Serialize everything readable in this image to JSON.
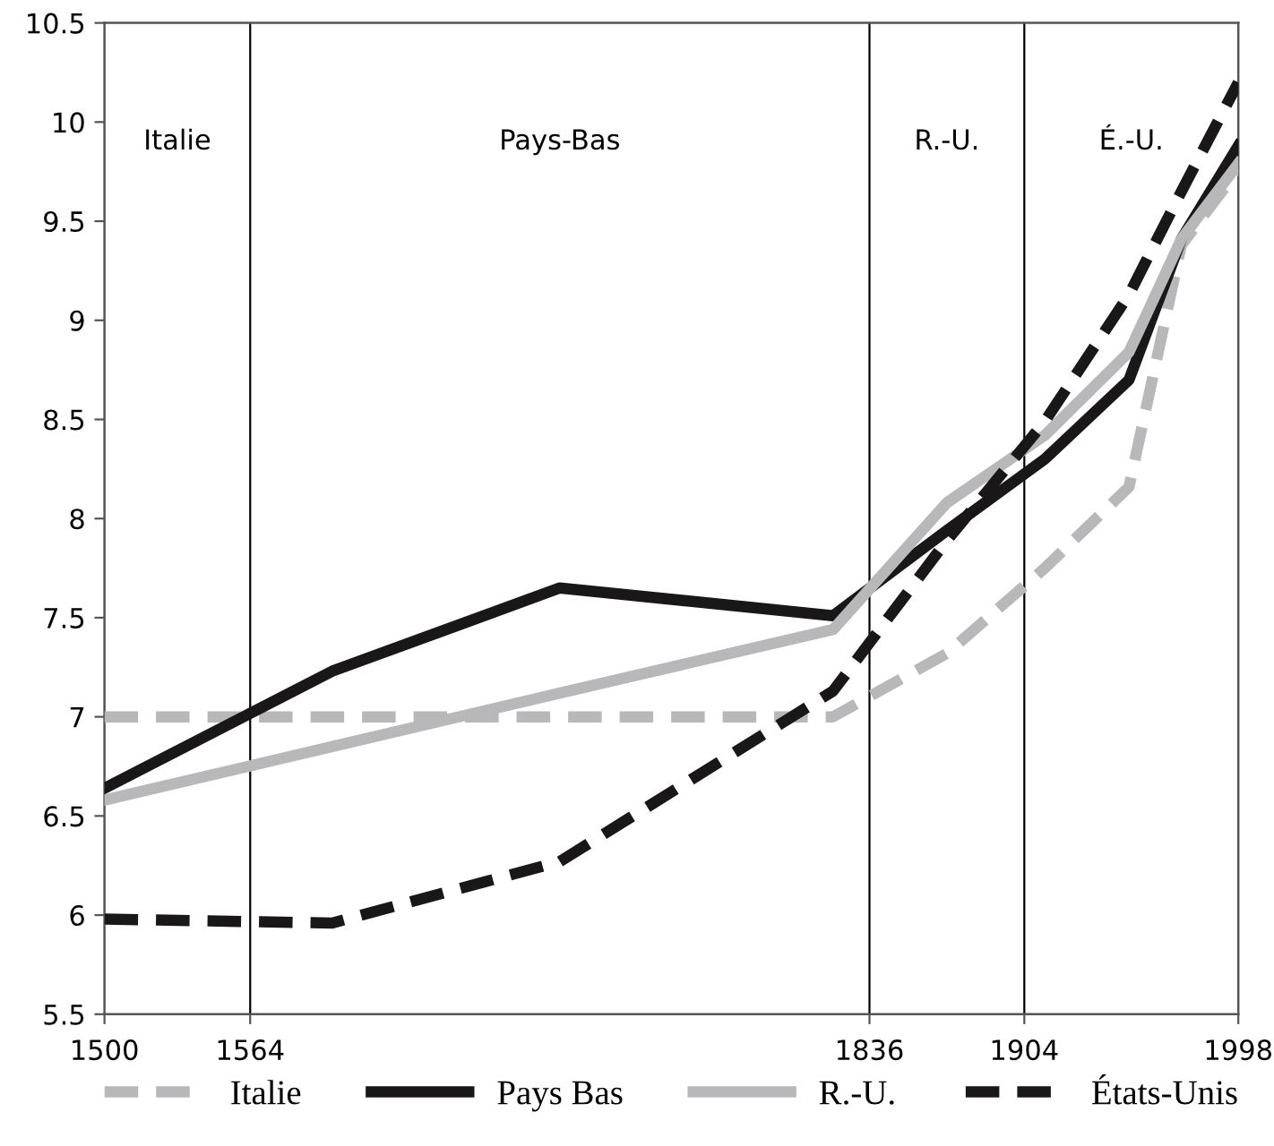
{
  "chart_data": {
    "type": "line",
    "x": [
      1500,
      1600,
      1700,
      1820,
      1870,
      1913,
      1950,
      1973,
      1998
    ],
    "series": [
      {
        "name": "Italie",
        "color": "#b8b8ba",
        "line_style": "dashed",
        "values": [
          7.0,
          7.0,
          7.0,
          7.0,
          7.32,
          7.75,
          8.16,
          9.38,
          9.76
        ]
      },
      {
        "name": "Pays Bas",
        "color": "#1a1718",
        "line_style": "solid",
        "values": [
          6.64,
          7.23,
          7.65,
          7.51,
          7.94,
          8.3,
          8.7,
          9.41,
          9.88
        ]
      },
      {
        "name": "R.-U.",
        "color": "#b8b8ba",
        "line_style": "solid",
        "values": [
          6.58,
          6.85,
          7.12,
          7.44,
          8.08,
          8.42,
          8.84,
          9.41,
          9.79
        ]
      },
      {
        "name": "États-Unis",
        "color": "#1a1718",
        "line_style": "dashed",
        "values": [
          5.98,
          5.96,
          6.27,
          7.13,
          7.89,
          8.49,
          9.13,
          9.65,
          10.2
        ]
      }
    ],
    "xlim": [
      1500,
      1998
    ],
    "xticks": [
      1500,
      1564,
      1836,
      1904,
      1998
    ],
    "ylim": [
      5.5,
      10.5
    ],
    "yticks": [
      5.5,
      6,
      6.5,
      7,
      7.5,
      8,
      8.5,
      9,
      9.5,
      10,
      10.5
    ],
    "ref_lines": [
      {
        "axis": "x",
        "value": 1564,
        "color": "#000000"
      },
      {
        "axis": "x",
        "value": 1836,
        "color": "#000000"
      },
      {
        "axis": "x",
        "value": 1904,
        "color": "#000000"
      }
    ],
    "annotations": [
      "Italie",
      "Pays-Bas",
      "R.-U.",
      "É.-U."
    ],
    "legend": "bottom",
    "grid": false,
    "marker": "none"
  }
}
